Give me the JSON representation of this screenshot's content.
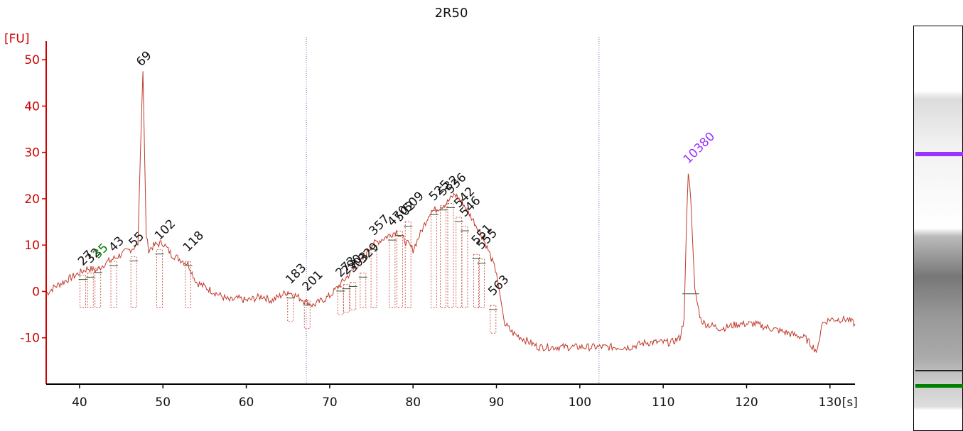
{
  "title": "2R50",
  "chart_data": {
    "type": "line",
    "title": "2R50",
    "ylabel": "[FU]",
    "xlabel": "[s]",
    "xlim": [
      36,
      133
    ],
    "ylim": [
      -20,
      54
    ],
    "x_ticks": [
      40,
      50,
      60,
      70,
      80,
      90,
      100,
      110,
      120,
      130
    ],
    "y_ticks": [
      -10,
      0,
      10,
      20,
      30,
      40,
      50
    ],
    "marker_lines_x": [
      67.2,
      102.3
    ],
    "colors": {
      "trace": "#c0392b",
      "axis": "#cc0000",
      "upper_marker": "#9933ff",
      "lower_marker": "#008000",
      "labels": "#111111"
    },
    "trace": {
      "x": [
        36,
        37,
        38,
        39,
        40,
        41,
        42,
        43,
        44,
        45,
        46,
        47,
        47.3,
        47.6,
        47.8,
        48,
        48.3,
        49,
        50,
        51,
        52,
        53,
        54,
        55,
        56,
        57,
        58,
        59,
        60,
        61,
        62,
        63,
        64,
        65,
        66,
        67,
        68,
        69,
        70,
        71,
        72,
        73,
        74,
        75,
        76,
        77,
        78,
        79,
        80,
        81,
        82,
        83,
        84,
        85,
        86,
        87,
        88,
        89,
        90,
        91,
        92,
        93,
        94,
        95,
        96,
        98,
        100,
        102,
        104,
        106,
        108,
        110,
        111,
        112,
        112.5,
        112.8,
        113,
        113.3,
        113.8,
        114.5,
        115,
        117,
        119,
        121,
        123,
        125,
        127,
        128.5,
        129,
        130,
        131,
        132,
        133
      ],
      "y": [
        -0.5,
        1,
        2,
        3,
        4,
        5,
        4.5,
        6,
        7,
        8,
        9,
        10,
        30,
        47.5,
        30,
        12,
        9,
        10,
        10.5,
        8,
        7,
        6,
        2,
        1,
        0,
        -1,
        -2,
        -1.5,
        -2,
        -1.5,
        -1,
        -2,
        -1,
        0,
        -1,
        -2,
        -3,
        -2,
        -1,
        1,
        3,
        5,
        7,
        10,
        11,
        12,
        13,
        11,
        9,
        13,
        17,
        18,
        19,
        21,
        19,
        16,
        13,
        9,
        4,
        -7,
        -9,
        -10,
        -11,
        -12,
        -12,
        -12,
        -12,
        -12,
        -12,
        -12,
        -11,
        -11,
        -11,
        -10,
        -6,
        15,
        26,
        20,
        0,
        -6,
        -7,
        -8,
        -7,
        -7,
        -8,
        -9,
        -10,
        -13,
        -7,
        -6,
        -6,
        -6,
        -7
      ]
    },
    "peaks": [
      {
        "label": "27",
        "x": 40.4,
        "y": 5,
        "color": "#111111"
      },
      {
        "label": "32",
        "x": 41.3,
        "y": 5.5,
        "color": "#111111"
      },
      {
        "label": "35",
        "x": 42.2,
        "y": 6.5,
        "color": "#008000"
      },
      {
        "label": "43",
        "x": 44.1,
        "y": 8,
        "color": "#111111"
      },
      {
        "label": "55",
        "x": 46.5,
        "y": 9,
        "color": "#111111"
      },
      {
        "label": "69",
        "x": 47.4,
        "y": 48,
        "color": "#111111"
      },
      {
        "label": "102",
        "x": 49.6,
        "y": 10.5,
        "color": "#111111"
      },
      {
        "label": "118",
        "x": 53,
        "y": 8,
        "color": "#111111"
      },
      {
        "label": "183",
        "x": 65.3,
        "y": 1,
        "color": "#111111"
      },
      {
        "label": "201",
        "x": 67.3,
        "y": -0.5,
        "color": "#111111"
      },
      {
        "label": "273",
        "x": 71.3,
        "y": 2.5,
        "color": "#111111"
      },
      {
        "label": "290",
        "x": 72,
        "y": 3,
        "color": "#111111"
      },
      {
        "label": "303",
        "x": 72.8,
        "y": 3.5,
        "color": "#111111"
      },
      {
        "label": "329",
        "x": 74,
        "y": 5.5,
        "color": "#111111"
      },
      {
        "label": "357",
        "x": 75.3,
        "y": 11.5,
        "color": "#111111"
      },
      {
        "label": "470",
        "x": 77.5,
        "y": 13.5,
        "color": "#111111"
      },
      {
        "label": "502",
        "x": 78.4,
        "y": 14.5,
        "color": "#111111"
      },
      {
        "label": "509",
        "x": 79.4,
        "y": 16.5,
        "color": "#111111"
      },
      {
        "label": "525",
        "x": 82.5,
        "y": 19,
        "color": "#111111"
      },
      {
        "label": "532",
        "x": 83.6,
        "y": 20,
        "color": "#111111"
      },
      {
        "label": "536",
        "x": 84.5,
        "y": 20.5,
        "color": "#111111"
      },
      {
        "label": "542",
        "x": 85.5,
        "y": 17.5,
        "color": "#111111"
      },
      {
        "label": "546",
        "x": 86.2,
        "y": 15.5,
        "color": "#111111"
      },
      {
        "label": "551",
        "x": 87.6,
        "y": 9.5,
        "color": "#111111"
      },
      {
        "label": "555",
        "x": 88.2,
        "y": 8.5,
        "color": "#111111"
      },
      {
        "label": "563",
        "x": 89.6,
        "y": -1.5,
        "color": "#111111"
      },
      {
        "label": "10380",
        "x": 113,
        "y": 27,
        "color": "#9933ff"
      }
    ]
  },
  "gel_lane": {
    "upper_marker_color": "#9933ff",
    "lower_marker_color": "#008000"
  }
}
